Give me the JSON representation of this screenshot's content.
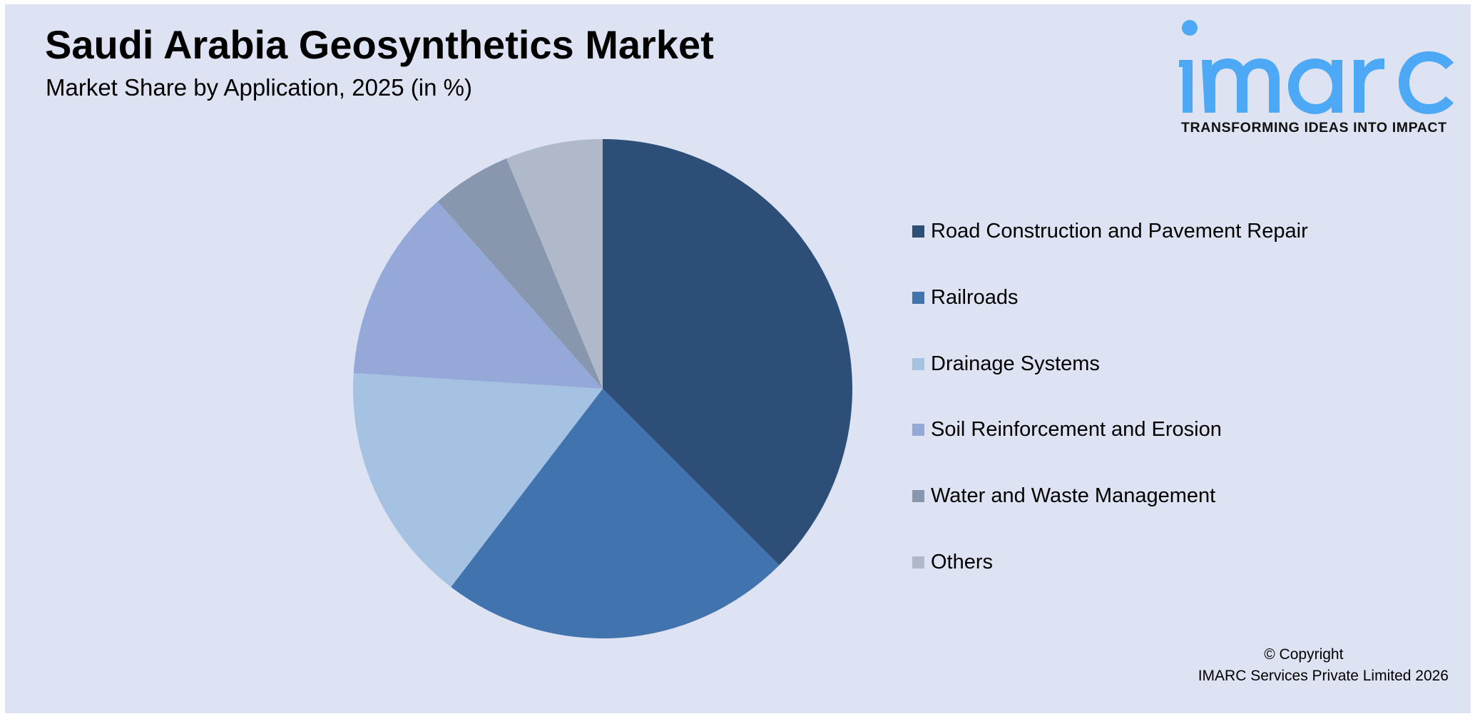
{
  "header": {
    "title": "Saudi Arabia Geosynthetics Market",
    "subtitle": "Market Share by Application, 2025 (in %)"
  },
  "logo": {
    "wordmark": "imarc",
    "tagline": "TRANSFORMING IDEAS INTO IMPACT",
    "color": "#4DA8F5"
  },
  "footer": {
    "copyright_line1": "© Copyright",
    "copyright_line2": "IMARC Services Private Limited 2026"
  },
  "legend": {
    "items": [
      {
        "label": "Road Construction and Pavement Repair",
        "color": "#2C4E77"
      },
      {
        "label": "Railroads",
        "color": "#4173AF"
      },
      {
        "label": "Drainage Systems",
        "color": "#A6C2E2"
      },
      {
        "label": "Soil Reinforcement and Erosion",
        "color": "#95A9D8"
      },
      {
        "label": "Water and Waste Management",
        "color": "#8897AE"
      },
      {
        "label": "Others",
        "color": "#AFB9C9"
      }
    ]
  },
  "chart_data": {
    "type": "pie",
    "title": "Saudi Arabia Geosynthetics Market",
    "subtitle": "Market Share by Application, 2025 (in %)",
    "categories": [
      "Road Construction and Pavement Repair",
      "Railroads",
      "Drainage Systems",
      "Soil Reinforcement and Erosion",
      "Water and Waste Management",
      "Others"
    ],
    "values": [
      37.5,
      22.9,
      15.6,
      12.5,
      5.2,
      6.3
    ],
    "colors": [
      "#2C4E77",
      "#4173AF",
      "#A6C2E2",
      "#95A9D8",
      "#8897AE",
      "#AFB9C9"
    ],
    "start_angle": "12 o'clock, clockwise",
    "data_labels": false,
    "legend_position": "right"
  }
}
